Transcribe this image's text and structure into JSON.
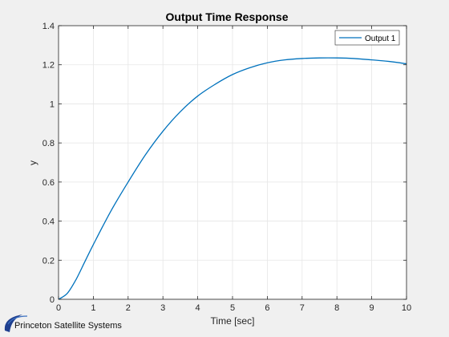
{
  "chart_data": {
    "type": "line",
    "title": "Output Time Response",
    "xlabel": "Time [sec]",
    "ylabel": "y",
    "xlim": [
      0,
      10
    ],
    "ylim": [
      0,
      1.4
    ],
    "xticks": [
      0,
      1,
      2,
      3,
      4,
      5,
      6,
      7,
      8,
      9,
      10
    ],
    "yticks": [
      0,
      0.2,
      0.4,
      0.6,
      0.8,
      1,
      1.2,
      1.4
    ],
    "xtick_labels": [
      "0",
      "1",
      "2",
      "3",
      "4",
      "5",
      "6",
      "7",
      "8",
      "9",
      "10"
    ],
    "ytick_labels": [
      "0",
      "0.2",
      "0.4",
      "0.6",
      "0.8",
      "1",
      "1.2",
      "1.4"
    ],
    "grid": true,
    "legend_position": "top-right",
    "series": [
      {
        "name": "Output 1",
        "color": "#0072bd",
        "x": [
          0,
          0.25,
          0.5,
          0.75,
          1,
          1.5,
          2,
          2.5,
          3,
          3.5,
          4,
          4.5,
          5,
          5.5,
          6,
          6.5,
          7,
          7.5,
          8,
          8.5,
          9,
          9.5,
          10
        ],
        "y": [
          0,
          0.03,
          0.1,
          0.19,
          0.28,
          0.45,
          0.6,
          0.74,
          0.86,
          0.96,
          1.04,
          1.1,
          1.15,
          1.185,
          1.21,
          1.225,
          1.232,
          1.235,
          1.235,
          1.232,
          1.225,
          1.217,
          1.205
        ]
      }
    ]
  },
  "logo": {
    "text": "Princeton Satellite Systems",
    "colors": [
      "#1f3f8f",
      "#3a6fc0"
    ]
  }
}
